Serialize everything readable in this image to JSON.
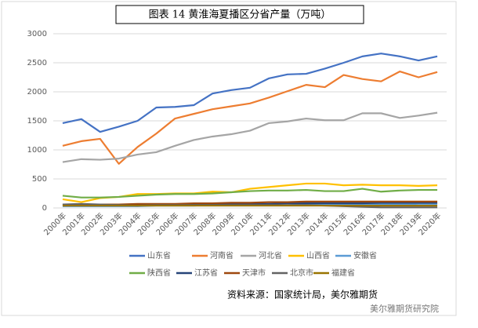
{
  "chart_data": {
    "type": "line",
    "title": "图表 14 黄淮海夏播区分省产量（万吨）",
    "source": "资料来源：国家统计局，美尔雅期货",
    "watermark": "美尔雅期货研究院",
    "categories": [
      "2000年",
      "2001年",
      "2002年",
      "2003年",
      "2004年",
      "2005年",
      "2006年",
      "2007年",
      "2008年",
      "2009年",
      "2010年",
      "2011年",
      "2012年",
      "2013年",
      "2014年",
      "2015年",
      "2016年",
      "2017年",
      "2018年",
      "2019年",
      "2020年"
    ],
    "ylim": [
      0,
      3000
    ],
    "yticks": [
      0,
      500,
      1000,
      1500,
      2000,
      2500,
      3000
    ],
    "grid": true,
    "legend": "bottom",
    "series": [
      {
        "name": "山东省",
        "color": "#4472c4",
        "values": [
          1460,
          1530,
          1310,
          1400,
          1500,
          1730,
          1740,
          1770,
          1970,
          2030,
          2070,
          2230,
          2300,
          2310,
          2400,
          2500,
          2610,
          2660,
          2610,
          2540,
          2610
        ]
      },
      {
        "name": "河南省",
        "color": "#ed7d31",
        "values": [
          1070,
          1150,
          1190,
          760,
          1050,
          1280,
          1540,
          1620,
          1700,
          1750,
          1800,
          1900,
          2010,
          2120,
          2080,
          2290,
          2220,
          2180,
          2350,
          2250,
          2340
        ]
      },
      {
        "name": "河北省",
        "color": "#a5a5a5",
        "values": [
          790,
          840,
          830,
          850,
          920,
          960,
          1070,
          1170,
          1230,
          1270,
          1330,
          1460,
          1490,
          1540,
          1510,
          1510,
          1630,
          1630,
          1550,
          1590,
          1640
        ]
      },
      {
        "name": "山西省",
        "color": "#ffc000",
        "values": [
          150,
          100,
          170,
          190,
          240,
          240,
          250,
          250,
          280,
          270,
          330,
          360,
          390,
          420,
          420,
          390,
          400,
          390,
          390,
          380,
          390
        ]
      },
      {
        "name": "安徽省",
        "color": "#5b9bd5",
        "values": [
          30,
          30,
          30,
          30,
          30,
          40,
          40,
          40,
          50,
          50,
          50,
          50,
          50,
          60,
          60,
          60,
          60,
          60,
          60,
          70,
          70
        ]
      },
      {
        "name": "陕西省",
        "color": "#70ad47",
        "values": [
          210,
          180,
          180,
          190,
          210,
          230,
          240,
          240,
          250,
          270,
          290,
          300,
          300,
          310,
          290,
          290,
          330,
          280,
          300,
          310,
          310
        ]
      },
      {
        "name": "江苏省",
        "color": "#264478",
        "values": [
          50,
          50,
          50,
          50,
          60,
          60,
          60,
          60,
          70,
          70,
          70,
          70,
          80,
          80,
          80,
          80,
          80,
          90,
          90,
          90,
          90
        ]
      },
      {
        "name": "天津市",
        "color": "#9e480e",
        "values": [
          60,
          60,
          60,
          60,
          70,
          70,
          70,
          80,
          80,
          90,
          90,
          100,
          100,
          110,
          110,
          110,
          110,
          110,
          110,
          110,
          110
        ]
      },
      {
        "name": "北京市",
        "color": "#636363",
        "values": [
          60,
          70,
          60,
          50,
          40,
          50,
          50,
          50,
          50,
          50,
          50,
          50,
          50,
          50,
          40,
          30,
          20,
          10,
          10,
          10,
          10
        ]
      },
      {
        "name": "福建省",
        "color": "#997300",
        "values": [
          40,
          40,
          40,
          40,
          40,
          40,
          40,
          40,
          40,
          40,
          40,
          40,
          40,
          40,
          40,
          40,
          40,
          40,
          40,
          40,
          40
        ]
      }
    ]
  }
}
